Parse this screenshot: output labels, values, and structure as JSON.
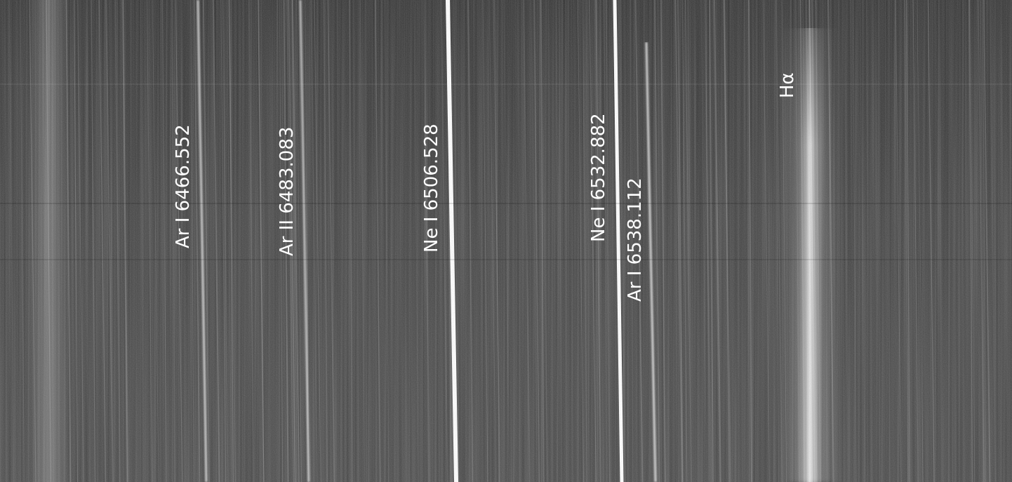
{
  "image": {
    "subject": "spectrum",
    "background_color": "#3a3a3a",
    "line_color": "#ffffff"
  },
  "labels": [
    {
      "id": "ar-i-6466",
      "text": "Ar I 6466.552"
    },
    {
      "id": "ar-ii-6483",
      "text": "Ar II 6483.083"
    },
    {
      "id": "ne-i-6506",
      "text": "Ne I 6506.528"
    },
    {
      "id": "ne-i-6532",
      "text": "Ne I 6532.882"
    },
    {
      "id": "ar-i-6538",
      "text": "Ar I 6538.112"
    },
    {
      "id": "h-alpha",
      "text": "Hα"
    }
  ]
}
